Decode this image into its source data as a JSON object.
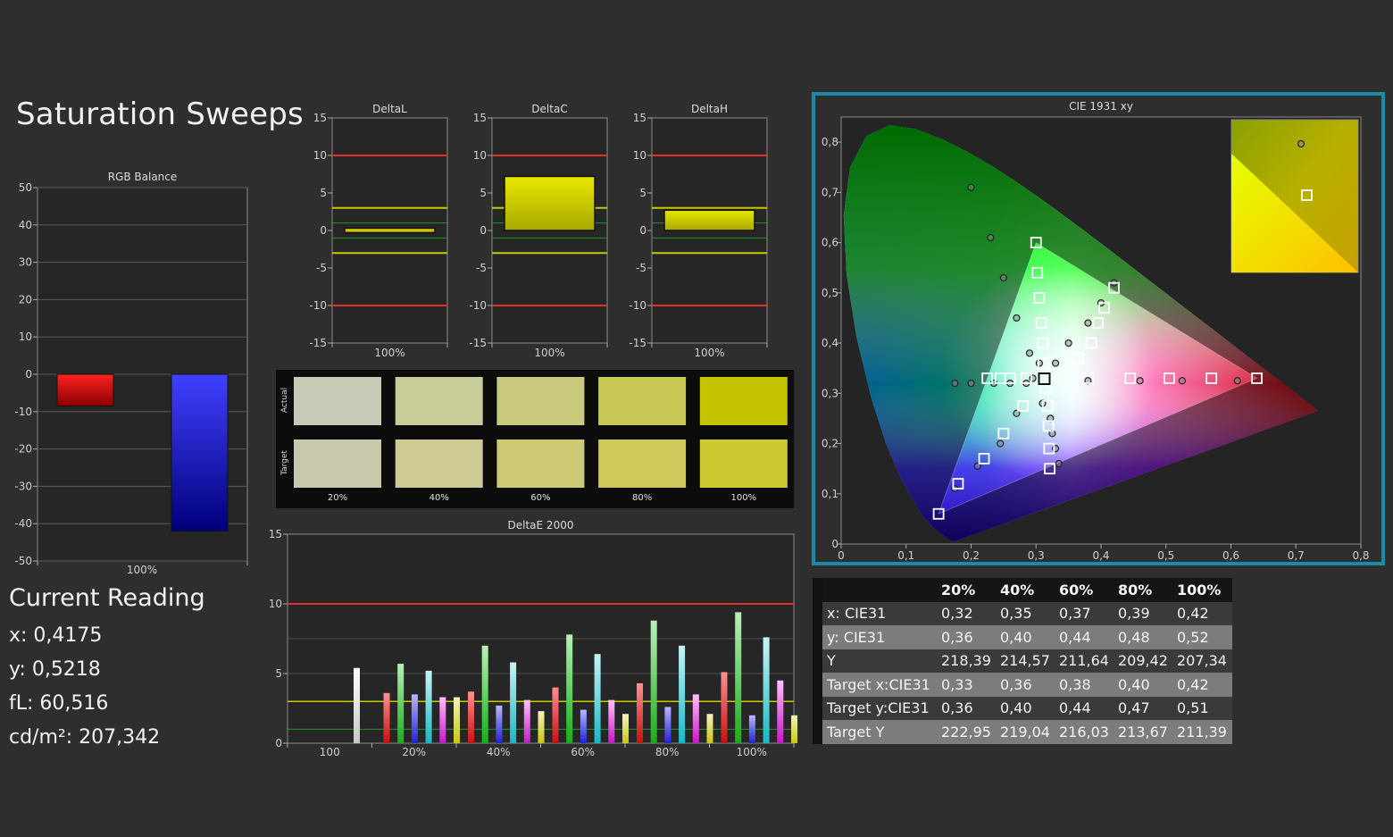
{
  "page_title": "Saturation Sweeps",
  "current_reading": {
    "title": "Current Reading",
    "x": "x: 0,4175",
    "y": "y: 0,5218",
    "fl": "fL: 60,516",
    "cdm2": "cd/m²: 207,342"
  },
  "colors": {
    "background": "#2e2e2e",
    "red_limit": "#e03030",
    "yellow_limit": "#c8c800",
    "green_limit": "#1f9a1f",
    "frame_accent": "#1b8aa8"
  },
  "swatches": {
    "row_labels": [
      "Actual",
      "Target"
    ],
    "labels": [
      "20%",
      "40%",
      "60%",
      "80%",
      "100%"
    ],
    "actual_colors": [
      "#c6cbb6",
      "#c8cc98",
      "#c9ca7e",
      "#c8c955",
      "#c4c400"
    ],
    "target_colors": [
      "#c9c8ac",
      "#cdca94",
      "#cec974",
      "#cdc95a",
      "#cdc933"
    ]
  },
  "table": {
    "headers": [
      "",
      "20%",
      "40%",
      "60%",
      "80%",
      "100%"
    ],
    "rows": [
      {
        "label": "x: CIE31",
        "values": [
          "0,32",
          "0,35",
          "0,37",
          "0,39",
          "0,42"
        ]
      },
      {
        "label": "y: CIE31",
        "values": [
          "0,36",
          "0,40",
          "0,44",
          "0,48",
          "0,52"
        ]
      },
      {
        "label": "Y",
        "values": [
          "218,39",
          "214,57",
          "211,64",
          "209,42",
          "207,34"
        ]
      },
      {
        "label": "Target x:CIE31",
        "values": [
          "0,33",
          "0,36",
          "0,38",
          "0,40",
          "0,42"
        ]
      },
      {
        "label": "Target y:CIE31",
        "values": [
          "0,36",
          "0,40",
          "0,44",
          "0,47",
          "0,51"
        ]
      },
      {
        "label": "Target Y",
        "values": [
          "222,95",
          "219,04",
          "216,03",
          "213,67",
          "211,39"
        ]
      }
    ]
  },
  "chart_data": [
    {
      "id": "rgb_balance",
      "type": "bar",
      "title": "RGB Balance",
      "categories": [
        "100%"
      ],
      "ylim": [
        -50,
        50
      ],
      "yticks": [
        "50",
        "40",
        "30",
        "20",
        "10",
        "0",
        "-10",
        "-20",
        "-30",
        "-40",
        "-50"
      ],
      "series": [
        {
          "color": "red",
          "values": [
            -8.5
          ]
        },
        {
          "color": "blue",
          "values": [
            -42
          ]
        }
      ]
    },
    {
      "id": "delta_l",
      "type": "bar",
      "title": "DeltaL",
      "categories": [
        "100%"
      ],
      "ylim": [
        -15,
        15
      ],
      "yticks": [
        "15",
        "10",
        "5",
        "0",
        "-5",
        "-10",
        "-15"
      ],
      "values": [
        -0.3
      ],
      "ref_lines": {
        "red": [
          10,
          -10
        ],
        "yellow": [
          3,
          -3
        ],
        "green": [
          1,
          -1
        ]
      }
    },
    {
      "id": "delta_c",
      "type": "bar",
      "title": "DeltaC",
      "categories": [
        "100%"
      ],
      "ylim": [
        -15,
        15
      ],
      "yticks": [
        "15",
        "10",
        "5",
        "0",
        "-5",
        "-10",
        "-15"
      ],
      "values": [
        7.2
      ],
      "ref_lines": {
        "red": [
          10,
          -10
        ],
        "yellow": [
          3,
          -3
        ],
        "green": [
          1,
          -1
        ]
      }
    },
    {
      "id": "delta_h",
      "type": "bar",
      "title": "DeltaH",
      "categories": [
        "100%"
      ],
      "ylim": [
        -15,
        15
      ],
      "yticks": [
        "15",
        "10",
        "5",
        "0",
        "-5",
        "-10",
        "-15"
      ],
      "values": [
        2.7
      ],
      "ref_lines": {
        "red": [
          10,
          -10
        ],
        "yellow": [
          3,
          -3
        ],
        "green": [
          1,
          -1
        ]
      }
    },
    {
      "id": "delta_e",
      "type": "bar",
      "title": "DeltaE 2000",
      "categories": [
        "100",
        "20%",
        "40%",
        "60%",
        "80%",
        "100%"
      ],
      "ylim": [
        0,
        15
      ],
      "yticks": [
        "15",
        "10",
        "5",
        "0"
      ],
      "ref_lines": {
        "red": [
          10
        ],
        "yellow": [
          3
        ],
        "green": [
          1
        ]
      },
      "groups": [
        {
          "category": "100",
          "bars": [
            {
              "color": "white",
              "value": 5.4
            }
          ]
        },
        {
          "category": "20%",
          "bars": [
            {
              "color": "red",
              "value": 3.6
            },
            {
              "color": "green",
              "value": 5.7
            },
            {
              "color": "blue",
              "value": 3.5
            },
            {
              "color": "cyan",
              "value": 5.2
            },
            {
              "color": "magenta",
              "value": 3.3
            },
            {
              "color": "yellow",
              "value": 3.3
            }
          ]
        },
        {
          "category": "40%",
          "bars": [
            {
              "color": "red",
              "value": 3.7
            },
            {
              "color": "green",
              "value": 7.0
            },
            {
              "color": "blue",
              "value": 2.7
            },
            {
              "color": "cyan",
              "value": 5.8
            },
            {
              "color": "magenta",
              "value": 3.1
            },
            {
              "color": "yellow",
              "value": 2.3
            }
          ]
        },
        {
          "category": "60%",
          "bars": [
            {
              "color": "red",
              "value": 4.0
            },
            {
              "color": "green",
              "value": 7.8
            },
            {
              "color": "blue",
              "value": 2.4
            },
            {
              "color": "cyan",
              "value": 6.4
            },
            {
              "color": "magenta",
              "value": 3.1
            },
            {
              "color": "yellow",
              "value": 2.1
            }
          ]
        },
        {
          "category": "80%",
          "bars": [
            {
              "color": "red",
              "value": 4.3
            },
            {
              "color": "green",
              "value": 8.8
            },
            {
              "color": "blue",
              "value": 2.6
            },
            {
              "color": "cyan",
              "value": 7.0
            },
            {
              "color": "magenta",
              "value": 3.5
            },
            {
              "color": "yellow",
              "value": 2.1
            }
          ]
        },
        {
          "category": "100%",
          "bars": [
            {
              "color": "red",
              "value": 5.1
            },
            {
              "color": "green",
              "value": 9.4
            },
            {
              "color": "blue",
              "value": 2.0
            },
            {
              "color": "cyan",
              "value": 7.6
            },
            {
              "color": "magenta",
              "value": 4.5
            },
            {
              "color": "yellow",
              "value": 2.0
            }
          ]
        }
      ]
    },
    {
      "id": "cie_1931",
      "type": "scatter",
      "title": "CIE 1931 xy",
      "xlim": [
        0,
        0.8
      ],
      "ylim": [
        0,
        0.85
      ],
      "xticks": [
        "0",
        "0,1",
        "0,2",
        "0,3",
        "0,4",
        "0,5",
        "0,6",
        "0,7",
        "0,8"
      ],
      "yticks": [
        "0",
        "0,1",
        "0,2",
        "0,3",
        "0,4",
        "0,5",
        "0,6",
        "0,7",
        "0,8"
      ],
      "gamut": [
        [
          0.64,
          0.33
        ],
        [
          0.3,
          0.6
        ],
        [
          0.15,
          0.06
        ]
      ],
      "white_point": [
        0.3127,
        0.329
      ],
      "target_points": [
        [
          0.64,
          0.33
        ],
        [
          0.57,
          0.33
        ],
        [
          0.505,
          0.33
        ],
        [
          0.445,
          0.33
        ],
        [
          0.38,
          0.33
        ],
        [
          0.3,
          0.6
        ],
        [
          0.302,
          0.54
        ],
        [
          0.305,
          0.49
        ],
        [
          0.308,
          0.44
        ],
        [
          0.31,
          0.4
        ],
        [
          0.311,
          0.36
        ],
        [
          0.15,
          0.06
        ],
        [
          0.18,
          0.12
        ],
        [
          0.22,
          0.17
        ],
        [
          0.25,
          0.22
        ],
        [
          0.28,
          0.275
        ],
        [
          0.225,
          0.33
        ],
        [
          0.245,
          0.33
        ],
        [
          0.26,
          0.33
        ],
        [
          0.285,
          0.33
        ],
        [
          0.315,
          0.31
        ],
        [
          0.318,
          0.275
        ],
        [
          0.319,
          0.235
        ],
        [
          0.32,
          0.19
        ],
        [
          0.321,
          0.15
        ],
        [
          0.42,
          0.51
        ],
        [
          0.405,
          0.47
        ],
        [
          0.395,
          0.44
        ],
        [
          0.385,
          0.4
        ],
        [
          0.365,
          0.37
        ]
      ],
      "measured_points": [
        [
          0.2,
          0.71
        ],
        [
          0.23,
          0.61
        ],
        [
          0.25,
          0.53
        ],
        [
          0.27,
          0.45
        ],
        [
          0.29,
          0.38
        ],
        [
          0.305,
          0.36
        ],
        [
          0.175,
          0.32
        ],
        [
          0.2,
          0.32
        ],
        [
          0.235,
          0.32
        ],
        [
          0.26,
          0.32
        ],
        [
          0.285,
          0.32
        ],
        [
          0.525,
          0.325
        ],
        [
          0.46,
          0.325
        ],
        [
          0.38,
          0.325
        ],
        [
          0.61,
          0.325
        ],
        [
          0.42,
          0.52
        ],
        [
          0.4,
          0.48
        ],
        [
          0.38,
          0.44
        ],
        [
          0.35,
          0.4
        ],
        [
          0.33,
          0.36
        ],
        [
          0.175,
          0.11
        ],
        [
          0.21,
          0.155
        ],
        [
          0.245,
          0.2
        ],
        [
          0.27,
          0.26
        ],
        [
          0.295,
          0.33
        ],
        [
          0.31,
          0.28
        ],
        [
          0.322,
          0.25
        ],
        [
          0.325,
          0.22
        ],
        [
          0.33,
          0.19
        ],
        [
          0.335,
          0.16
        ]
      ],
      "inset": {
        "target": [
          0.42,
          0.51
        ],
        "measured": [
          0.4175,
          0.5218
        ]
      }
    }
  ]
}
